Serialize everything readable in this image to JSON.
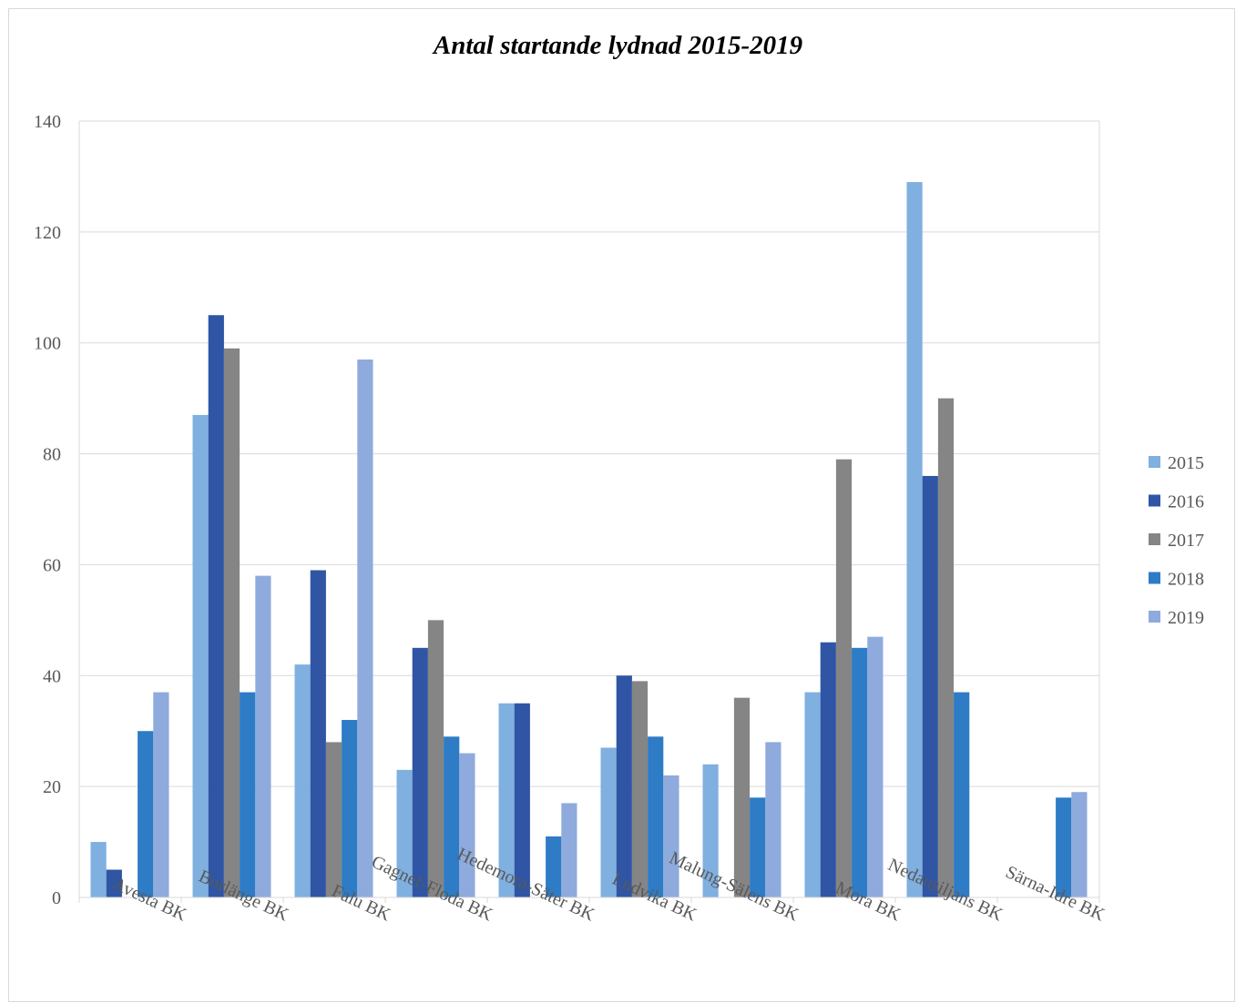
{
  "chart_data": {
    "type": "bar",
    "title": "Antal startande lydnad 2015-2019",
    "xlabel": "",
    "ylabel": "",
    "ylim": [
      0,
      140
    ],
    "yticks": [
      0,
      20,
      40,
      60,
      80,
      100,
      120,
      140
    ],
    "grid": "horizontal",
    "legend_position": "right",
    "categories": [
      "Avesta BK",
      "Borlänge BK",
      "Falu BK",
      "Gagnef-Floda BK",
      "Hedemora-Säter BK",
      "Ludvika BK",
      "Malung-Sälens BK",
      "Mora BK",
      "Nedansiljans BK",
      "Särna-Idre BK"
    ],
    "series": [
      {
        "name": "2015",
        "color": "#7fb0df",
        "values": [
          10,
          87,
          42,
          23,
          35,
          27,
          24,
          37,
          129,
          0
        ]
      },
      {
        "name": "2016",
        "color": "#2f55a4",
        "values": [
          5,
          105,
          59,
          45,
          35,
          40,
          0,
          46,
          76,
          0
        ]
      },
      {
        "name": "2017",
        "color": "#858585",
        "values": [
          0,
          99,
          28,
          50,
          0,
          39,
          36,
          79,
          90,
          0
        ]
      },
      {
        "name": "2018",
        "color": "#2e7bc6",
        "values": [
          30,
          37,
          32,
          29,
          11,
          29,
          18,
          45,
          37,
          18
        ]
      },
      {
        "name": "2019",
        "color": "#8faadc",
        "values": [
          37,
          58,
          97,
          26,
          17,
          22,
          28,
          47,
          0,
          19
        ]
      }
    ]
  }
}
